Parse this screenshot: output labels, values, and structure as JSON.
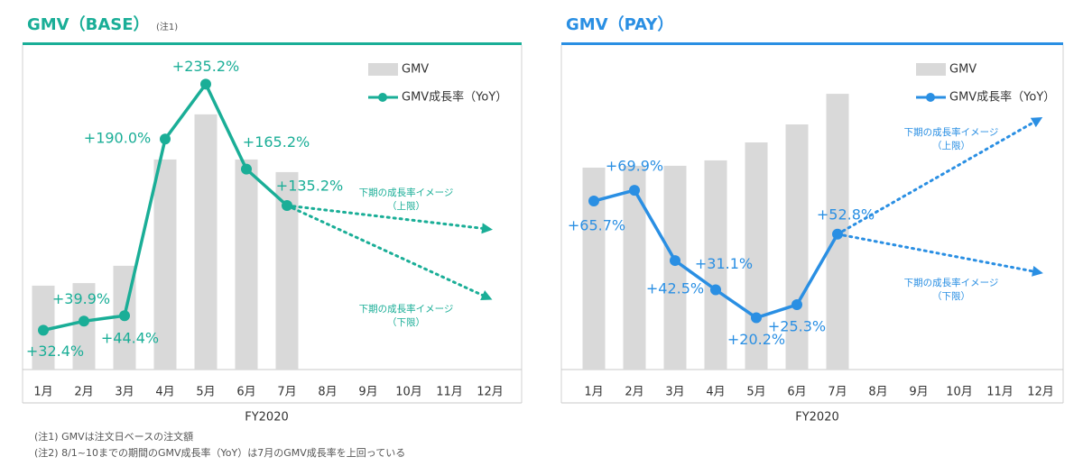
{
  "chart_data": [
    {
      "type": "combo",
      "title": "GMV（BASE）",
      "title_note": "(注1)",
      "color": "#1aae97",
      "categories": [
        "1月",
        "2月",
        "3月",
        "4月",
        "5月",
        "6月",
        "7月",
        "8月",
        "9月",
        "10月",
        "11月",
        "12月"
      ],
      "x_label": "FY2020",
      "ylim": [
        0,
        100
      ],
      "y2lim": [
        0,
        260
      ],
      "series": [
        {
          "name": "GMV",
          "type": "bar",
          "color": "#d9d9d9",
          "values": [
            26.6,
            27.4,
            32.9,
            66.6,
            80.9,
            66.6,
            62.6,
            null,
            null,
            null,
            null,
            null
          ]
        },
        {
          "name": "GMV成長率（YoY）",
          "type": "line",
          "axis": "y2",
          "color": "#1aae97",
          "values": [
            32.4,
            39.9,
            44.4,
            190.0,
            235.2,
            165.2,
            135.2,
            null,
            null,
            null,
            null,
            null
          ],
          "value_labels": [
            "+32.4%",
            "+39.9%",
            "+44.4%",
            "+190.0%",
            "+235.2%",
            "+165.2%",
            "+135.2%",
            null,
            null,
            null,
            null,
            null
          ]
        }
      ],
      "annotations": [
        [
          "下期の成長率イメージ",
          "（上限）"
        ],
        [
          "下期の成長率イメージ",
          "（下限）"
        ]
      ]
    },
    {
      "type": "combo",
      "title": "GMV（PAY）",
      "color": "#2a8fe3",
      "categories": [
        "1月",
        "2月",
        "3月",
        "4月",
        "5月",
        "6月",
        "7月",
        "8月",
        "9月",
        "10月",
        "11月",
        "12月"
      ],
      "x_label": "FY2020",
      "ylim": [
        0,
        100
      ],
      "y2lim": [
        0,
        123
      ],
      "series": [
        {
          "name": "GMV",
          "type": "bar",
          "color": "#d9d9d9",
          "values": [
            64.0,
            64.6,
            64.6,
            66.3,
            72.0,
            77.7,
            87.4,
            null,
            null,
            null,
            null,
            null
          ]
        },
        {
          "name": "GMV成長率（YoY）",
          "type": "line",
          "axis": "y2",
          "color": "#2a8fe3",
          "values": [
            65.7,
            69.9,
            42.5,
            31.1,
            20.2,
            25.3,
            52.8,
            null,
            null,
            null,
            null,
            null
          ],
          "value_labels": [
            "+65.7%",
            "+69.9%",
            "+42.5%",
            "+31.1%",
            "+20.2%",
            "+25.3%",
            "+52.8%",
            null,
            null,
            null,
            null,
            null
          ]
        }
      ],
      "annotations": [
        [
          "下期の成長率イメージ",
          "（上限）"
        ],
        [
          "下期の成長率イメージ",
          "（下限）"
        ]
      ]
    }
  ],
  "footnotes": [
    "(注1) GMVは注文日ベースの注文額",
    "(注2) 8/1~10までの期間のGMV成長率（YoY）は7月のGMV成長率を上回っている"
  ]
}
